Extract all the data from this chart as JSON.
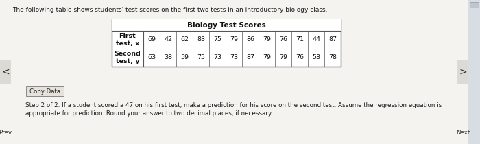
{
  "title_text": "The following table shows students' test scores on the first two tests in an introductory biology class.",
  "table_title": "Biology Test Scores",
  "row1_label": "First\ntest, x",
  "row2_label": "Second\ntest, y",
  "row1_values": [
    69,
    42,
    62,
    83,
    75,
    79,
    86,
    79,
    76,
    71,
    44,
    87
  ],
  "row2_values": [
    63,
    38,
    59,
    75,
    73,
    73,
    87,
    79,
    79,
    76,
    53,
    78
  ],
  "step_text_line1": "Step 2 of 2: If a student scored a 47 on his first test, make a prediction for his score on the second test. Assume the regression equation is",
  "step_text_line2": "appropriate for prediction. Round your answer to two decimal places, if necessary.",
  "copy_button": "Copy Data",
  "bg_color": "#ede9e1",
  "page_bg": "#f5f3ef",
  "table_bg": "#ffffff",
  "nav_left": "<",
  "nav_right": ">",
  "nav_label_right": "Next",
  "nav_label_left": "Prev",
  "scrollbar_color": "#b0b4bb",
  "scrollbar_bg": "#d8dce3"
}
